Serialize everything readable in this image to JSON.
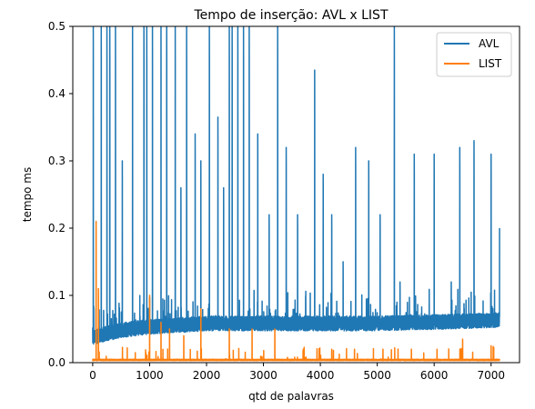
{
  "chart_data": {
    "type": "line",
    "title": "Tempo de inserção: AVL x LIST",
    "xlabel": "qtd de palavras",
    "ylabel": "tempo ms",
    "xlim": [
      -350,
      7500
    ],
    "ylim": [
      0,
      0.5
    ],
    "xticks": [
      0,
      1000,
      2000,
      3000,
      4000,
      5000,
      6000,
      7000
    ],
    "yticks": [
      0.0,
      0.1,
      0.2,
      0.3,
      0.4,
      0.5
    ],
    "xtick_labels": [
      "0",
      "1000",
      "2000",
      "3000",
      "4000",
      "5000",
      "6000",
      "7000"
    ],
    "ytick_labels": [
      "0.0",
      "0.1",
      "0.2",
      "0.3",
      "0.4",
      "0.5"
    ],
    "grid": false,
    "legend_position": "top-right",
    "n_points": 7150,
    "series": [
      {
        "name": "AVL",
        "color": "#1f77b4",
        "baseline": [
          [
            0,
            0.035
          ],
          [
            500,
            0.045
          ],
          [
            1000,
            0.05
          ],
          [
            2000,
            0.055
          ],
          [
            3000,
            0.055
          ],
          [
            4000,
            0.055
          ],
          [
            5000,
            0.055
          ],
          [
            6000,
            0.057
          ],
          [
            7150,
            0.06
          ]
        ],
        "spikes": [
          [
            10,
            0.5
          ],
          [
            150,
            0.5
          ],
          [
            250,
            0.5
          ],
          [
            300,
            0.5
          ],
          [
            400,
            0.5
          ],
          [
            520,
            0.3
          ],
          [
            700,
            0.5
          ],
          [
            900,
            0.5
          ],
          [
            950,
            0.5
          ],
          [
            1050,
            0.5
          ],
          [
            1200,
            0.5
          ],
          [
            1300,
            0.5
          ],
          [
            1450,
            0.5
          ],
          [
            1550,
            0.26
          ],
          [
            1650,
            0.5
          ],
          [
            1800,
            0.34
          ],
          [
            1900,
            0.3
          ],
          [
            2050,
            0.5
          ],
          [
            2200,
            0.365
          ],
          [
            2300,
            0.26
          ],
          [
            2400,
            0.5
          ],
          [
            2450,
            0.5
          ],
          [
            2550,
            0.5
          ],
          [
            2650,
            0.5
          ],
          [
            2750,
            0.5
          ],
          [
            2900,
            0.34
          ],
          [
            3100,
            0.22
          ],
          [
            3250,
            0.5
          ],
          [
            3400,
            0.32
          ],
          [
            3600,
            0.22
          ],
          [
            3900,
            0.435
          ],
          [
            4050,
            0.28
          ],
          [
            4200,
            0.22
          ],
          [
            4400,
            0.15
          ],
          [
            4620,
            0.32
          ],
          [
            4850,
            0.3
          ],
          [
            5050,
            0.22
          ],
          [
            5300,
            0.5
          ],
          [
            5400,
            0.12
          ],
          [
            5650,
            0.31
          ],
          [
            6000,
            0.31
          ],
          [
            6300,
            0.12
          ],
          [
            6450,
            0.32
          ],
          [
            6700,
            0.33
          ],
          [
            7000,
            0.31
          ],
          [
            7150,
            0.2
          ]
        ]
      },
      {
        "name": "LIST",
        "color": "#ff7f0e",
        "baseline": [
          [
            0,
            0.003
          ],
          [
            7150,
            0.003
          ]
        ],
        "spikes": [
          [
            60,
            0.21
          ],
          [
            100,
            0.11
          ],
          [
            1000,
            0.1
          ],
          [
            1200,
            0.06
          ],
          [
            1350,
            0.05
          ],
          [
            1600,
            0.04
          ],
          [
            1900,
            0.08
          ],
          [
            2400,
            0.05
          ],
          [
            2800,
            0.05
          ],
          [
            3200,
            0.05
          ],
          [
            3700,
            0.02
          ],
          [
            4200,
            0.02
          ],
          [
            4600,
            0.02
          ],
          [
            5100,
            0.02
          ],
          [
            5600,
            0.02
          ],
          [
            6050,
            0.02
          ],
          [
            6500,
            0.035
          ],
          [
            7000,
            0.025
          ]
        ]
      }
    ]
  }
}
